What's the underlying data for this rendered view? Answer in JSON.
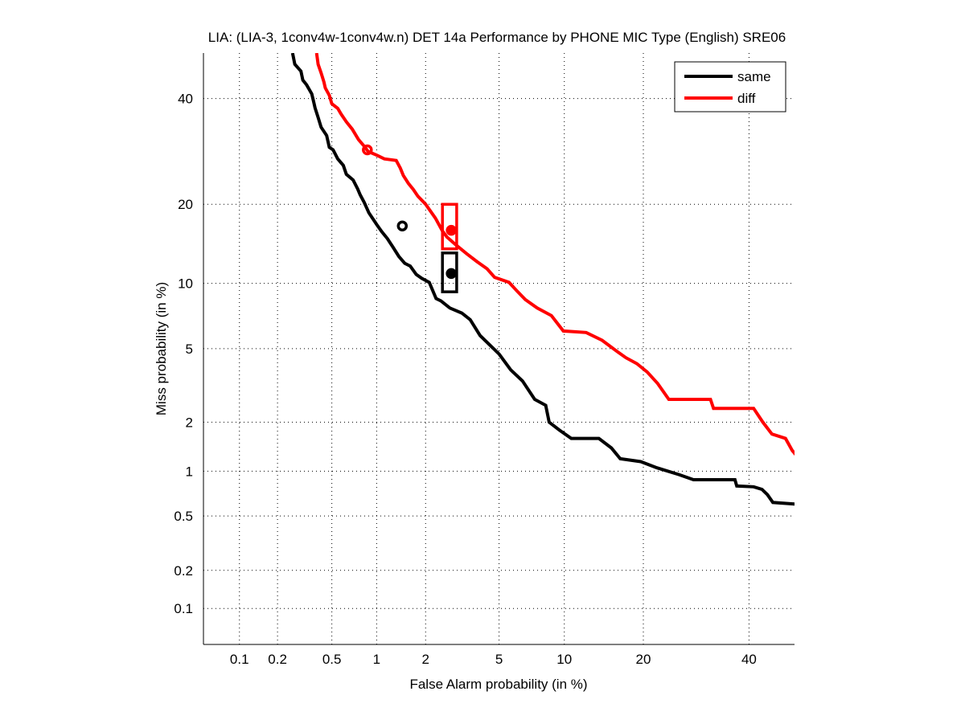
{
  "chart_data": {
    "type": "line",
    "title": "LIA: (LIA-3, 1conv4w-1conv4w.n) DET 14a Performance by PHONE MIC Type (English) SRE06",
    "xlabel": "False Alarm probability (in %)",
    "ylabel": "Miss probability (in %)",
    "xscale": "probit",
    "yscale": "probit",
    "xlim": [
      0.05,
      50
    ],
    "ylim": [
      0.05,
      50
    ],
    "xticks": [
      0.1,
      0.2,
      0.5,
      1,
      2,
      5,
      10,
      20,
      40
    ],
    "xtick_labels": [
      "0.1",
      "0.2",
      "0.5",
      "1",
      "2",
      "5",
      "10",
      "20",
      "40"
    ],
    "yticks": [
      0.1,
      0.2,
      0.5,
      1,
      2,
      5,
      10,
      20,
      40
    ],
    "ytick_labels": [
      "0.1",
      "0.2",
      "0.5",
      "1",
      "2",
      "5",
      "10",
      "20",
      "40"
    ],
    "grid": true,
    "legend": {
      "position": "top-right",
      "entries": [
        "same",
        "diff"
      ]
    },
    "series": [
      {
        "name": "same",
        "color": "#000000",
        "x": [
          0.26,
          0.27,
          0.3,
          0.31,
          0.33,
          0.36,
          0.37,
          0.38,
          0.4,
          0.42,
          0.46,
          0.48,
          0.51,
          0.55,
          0.6,
          0.63,
          0.7,
          0.75,
          0.78,
          0.83,
          0.89,
          1.0,
          1.08,
          1.17,
          1.27,
          1.38,
          1.5,
          1.62,
          1.76,
          1.9,
          2.1,
          2.3,
          2.45,
          2.75,
          3.2,
          3.55,
          4.0,
          4.5,
          5.0,
          5.7,
          6.5,
          7.4,
          8.3,
          8.6,
          9.5,
          10.7,
          13.8,
          15.4,
          16.6,
          19.6,
          22.2,
          26.0,
          28.7,
          37.0,
          37.4,
          41.0,
          42.8,
          44.0,
          45.2,
          51.5,
          52.2,
          58.5
        ],
        "y": [
          50.0,
          47.5,
          46.0,
          44.0,
          43.0,
          41.0,
          39.5,
          38.0,
          36.0,
          34.0,
          32.3,
          30.0,
          29.5,
          27.8,
          26.6,
          25.0,
          24.0,
          22.5,
          21.5,
          20.3,
          18.7,
          17.0,
          16.0,
          15.1,
          14.0,
          12.9,
          12.1,
          11.8,
          10.9,
          10.5,
          10.1,
          8.6,
          8.4,
          7.8,
          7.4,
          6.9,
          5.8,
          5.2,
          4.7,
          3.9,
          3.4,
          2.7,
          2.5,
          2.0,
          1.8,
          1.6,
          1.6,
          1.4,
          1.2,
          1.15,
          1.05,
          0.95,
          0.88,
          0.88,
          0.8,
          0.79,
          0.76,
          0.7,
          0.62,
          0.6,
          0.45,
          0.41
        ],
        "markers": [
          {
            "x": 1.45,
            "y": 16.8,
            "style": "circle"
          },
          {
            "x": 2.8,
            "y": 11.0,
            "style": "circle"
          }
        ],
        "confidence_box": {
          "x": [
            2.5,
            3.0
          ],
          "y": [
            9.2,
            13.3
          ]
        }
      },
      {
        "name": "diff",
        "color": "#ff0000",
        "x": [
          0.39,
          0.4,
          0.42,
          0.44,
          0.45,
          0.48,
          0.5,
          0.55,
          0.58,
          0.63,
          0.69,
          0.76,
          0.83,
          0.88,
          1.0,
          1.12,
          1.33,
          1.41,
          1.47,
          1.58,
          1.69,
          1.8,
          2.0,
          2.28,
          2.5,
          2.65,
          3.0,
          3.4,
          3.85,
          4.35,
          4.75,
          5.6,
          6.1,
          6.7,
          7.6,
          8.8,
          9.9,
          12.3,
          14.2,
          16.3,
          17.4,
          19.0,
          20.6,
          22.3,
          24.2,
          32.0,
          32.6,
          41.0,
          43.0,
          45.0,
          48.0,
          49.5,
          50.5,
          52.5,
          56.0,
          57.0,
          57.3,
          63.5,
          64.3,
          65.5,
          66.0
        ],
        "y": [
          50.0,
          47.5,
          45.6,
          43.6,
          42.3,
          40.7,
          38.9,
          37.9,
          36.7,
          35.1,
          33.6,
          31.5,
          30.2,
          29.2,
          28.5,
          27.8,
          27.5,
          26.1,
          24.8,
          23.4,
          22.4,
          21.3,
          20.0,
          17.9,
          16.1,
          15.3,
          14.2,
          13.2,
          12.3,
          11.5,
          10.6,
          10.1,
          9.3,
          8.5,
          7.8,
          7.2,
          6.1,
          6.0,
          5.5,
          4.8,
          4.5,
          4.2,
          3.8,
          3.3,
          2.7,
          2.7,
          2.4,
          2.4,
          2.0,
          1.7,
          1.6,
          1.35,
          1.25,
          1.05,
          1.05,
          0.85,
          0.85,
          0.72,
          0.7,
          0.65,
          0.55
        ],
        "markers": [
          {
            "x": 0.87,
            "y": 29.5,
            "style": "circle"
          },
          {
            "x": 2.8,
            "y": 16.2,
            "style": "circle"
          }
        ],
        "confidence_box": {
          "x": [
            2.5,
            3.0
          ],
          "y": [
            13.8,
            20.0
          ]
        }
      }
    ]
  }
}
